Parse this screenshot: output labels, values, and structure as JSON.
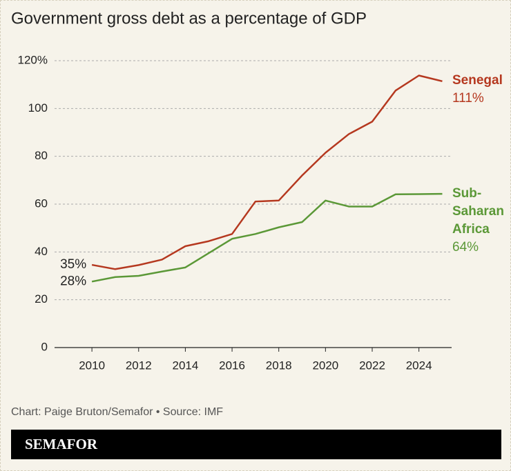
{
  "chart_data": {
    "type": "line",
    "title": "Government gross debt as a percentage of GDP",
    "x": [
      2010,
      2011,
      2012,
      2013,
      2014,
      2015,
      2016,
      2017,
      2018,
      2019,
      2020,
      2021,
      2022,
      2023,
      2024,
      2025
    ],
    "series": [
      {
        "name": "Senegal",
        "color": "#b5381f",
        "values": [
          34.6,
          32.8,
          34.5,
          36.8,
          42.4,
          44.5,
          47.5,
          61.1,
          61.5,
          72,
          81.5,
          89.3,
          94.5,
          107.5,
          113.8,
          111.4
        ],
        "value_labels": [
          "35%",
          null,
          null,
          null,
          null,
          null,
          null,
          null,
          null,
          null,
          null,
          null,
          null,
          null,
          null,
          "111%"
        ]
      },
      {
        "name": "Sub-Saharan Africa",
        "color": "#5b9837",
        "values": [
          27.6,
          29.5,
          30,
          31.8,
          33.5,
          39.5,
          45.5,
          47.5,
          50.3,
          52.5,
          61.5,
          59,
          59,
          64.1,
          64.2,
          64.3
        ],
        "value_labels": [
          "28%",
          null,
          null,
          null,
          null,
          null,
          null,
          null,
          null,
          null,
          null,
          null,
          null,
          null,
          null,
          "64%"
        ]
      }
    ],
    "xlim": [
      2008.4,
      2025.4
    ],
    "xticks": [
      2010,
      2012,
      2014,
      2016,
      2018,
      2020,
      2022,
      2024
    ],
    "ylim": [
      0,
      120
    ],
    "yticks": [
      0,
      20,
      40,
      60,
      80,
      100,
      {
        "value": 120,
        "label": "120%"
      }
    ],
    "grid": true,
    "credit": "Chart: Paige Bruton/Semafor • Source: IMF",
    "logo": "SEMAFOR"
  }
}
